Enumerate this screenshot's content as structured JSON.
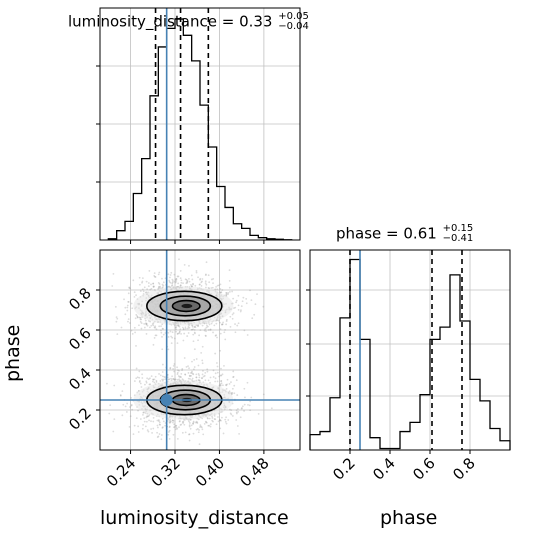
{
  "chart_data": [
    {
      "panel": "luminosity_distance-marginal",
      "type": "histogram",
      "title_param": "luminosity_distance",
      "title_value": "0.33",
      "title_plus": "+0.05",
      "title_minus": "−0.04",
      "xlim": [
        0.185,
        0.545
      ],
      "bin_edges": [
        0.2,
        0.215,
        0.23,
        0.245,
        0.26,
        0.275,
        0.29,
        0.305,
        0.32,
        0.335,
        0.35,
        0.365,
        0.38,
        0.395,
        0.41,
        0.425,
        0.44,
        0.455,
        0.47,
        0.485,
        0.5,
        0.515,
        0.53
      ],
      "counts": [
        0.5,
        4,
        8,
        20,
        35,
        62,
        83,
        91,
        95,
        88,
        77,
        58,
        40,
        23,
        14,
        7,
        5,
        2,
        1,
        0.5,
        0.3,
        0.1
      ],
      "quantiles": [
        0.285,
        0.33,
        0.38
      ],
      "truth": 0.305,
      "line_color": "#000000",
      "truth_color": "#4682b4"
    },
    {
      "panel": "phase-marginal",
      "type": "histogram",
      "title_param": "phase",
      "title_value": "0.61",
      "title_plus": "+0.15",
      "title_minus": "−0.41",
      "xlim": [
        0.0,
        1.0
      ],
      "xticks": [
        0.2,
        0.4,
        0.6,
        0.8
      ],
      "xtick_labels": [
        "0.2",
        "0.4",
        "0.6",
        "0.8"
      ],
      "bin_edges": [
        0,
        0.05,
        0.1,
        0.15,
        0.2,
        0.25,
        0.3,
        0.35,
        0.4,
        0.45,
        0.5,
        0.55,
        0.6,
        0.65,
        0.7,
        0.75,
        0.8,
        0.85,
        0.9,
        0.95,
        1.0
      ],
      "counts": [
        5,
        6,
        17,
        43,
        62,
        36,
        4,
        0.5,
        0.5,
        6,
        9,
        18,
        36,
        40,
        57,
        42,
        23,
        16,
        7,
        3
      ],
      "quantiles": [
        0.2,
        0.61,
        0.76
      ],
      "truth": 0.25,
      "line_color": "#000000",
      "truth_color": "#4682b4"
    },
    {
      "panel": "joint-contour",
      "type": "scatter",
      "xlim": [
        0.185,
        0.545
      ],
      "ylim": [
        0.0,
        1.0
      ],
      "xticks": [
        0.24,
        0.32,
        0.4,
        0.48
      ],
      "xtick_labels": [
        "0.24",
        "0.32",
        "0.40",
        "0.48"
      ],
      "yticks": [
        0.2,
        0.4,
        0.6,
        0.8
      ],
      "ytick_labels": [
        "0.2",
        "0.4",
        "0.6",
        "0.8"
      ],
      "xlabel": "luminosity_distance",
      "ylabel": "phase",
      "modes": [
        {
          "center": [
            0.335,
            0.72
          ],
          "spread": [
            0.045,
            0.07
          ]
        },
        {
          "center": [
            0.335,
            0.25
          ],
          "spread": [
            0.045,
            0.07
          ]
        }
      ],
      "truth": [
        0.305,
        0.25
      ],
      "truth_color": "#4682b4"
    }
  ],
  "labels": {
    "x_luminosity": "luminosity_distance",
    "x_phase": "phase",
    "y_phase": "phase"
  }
}
